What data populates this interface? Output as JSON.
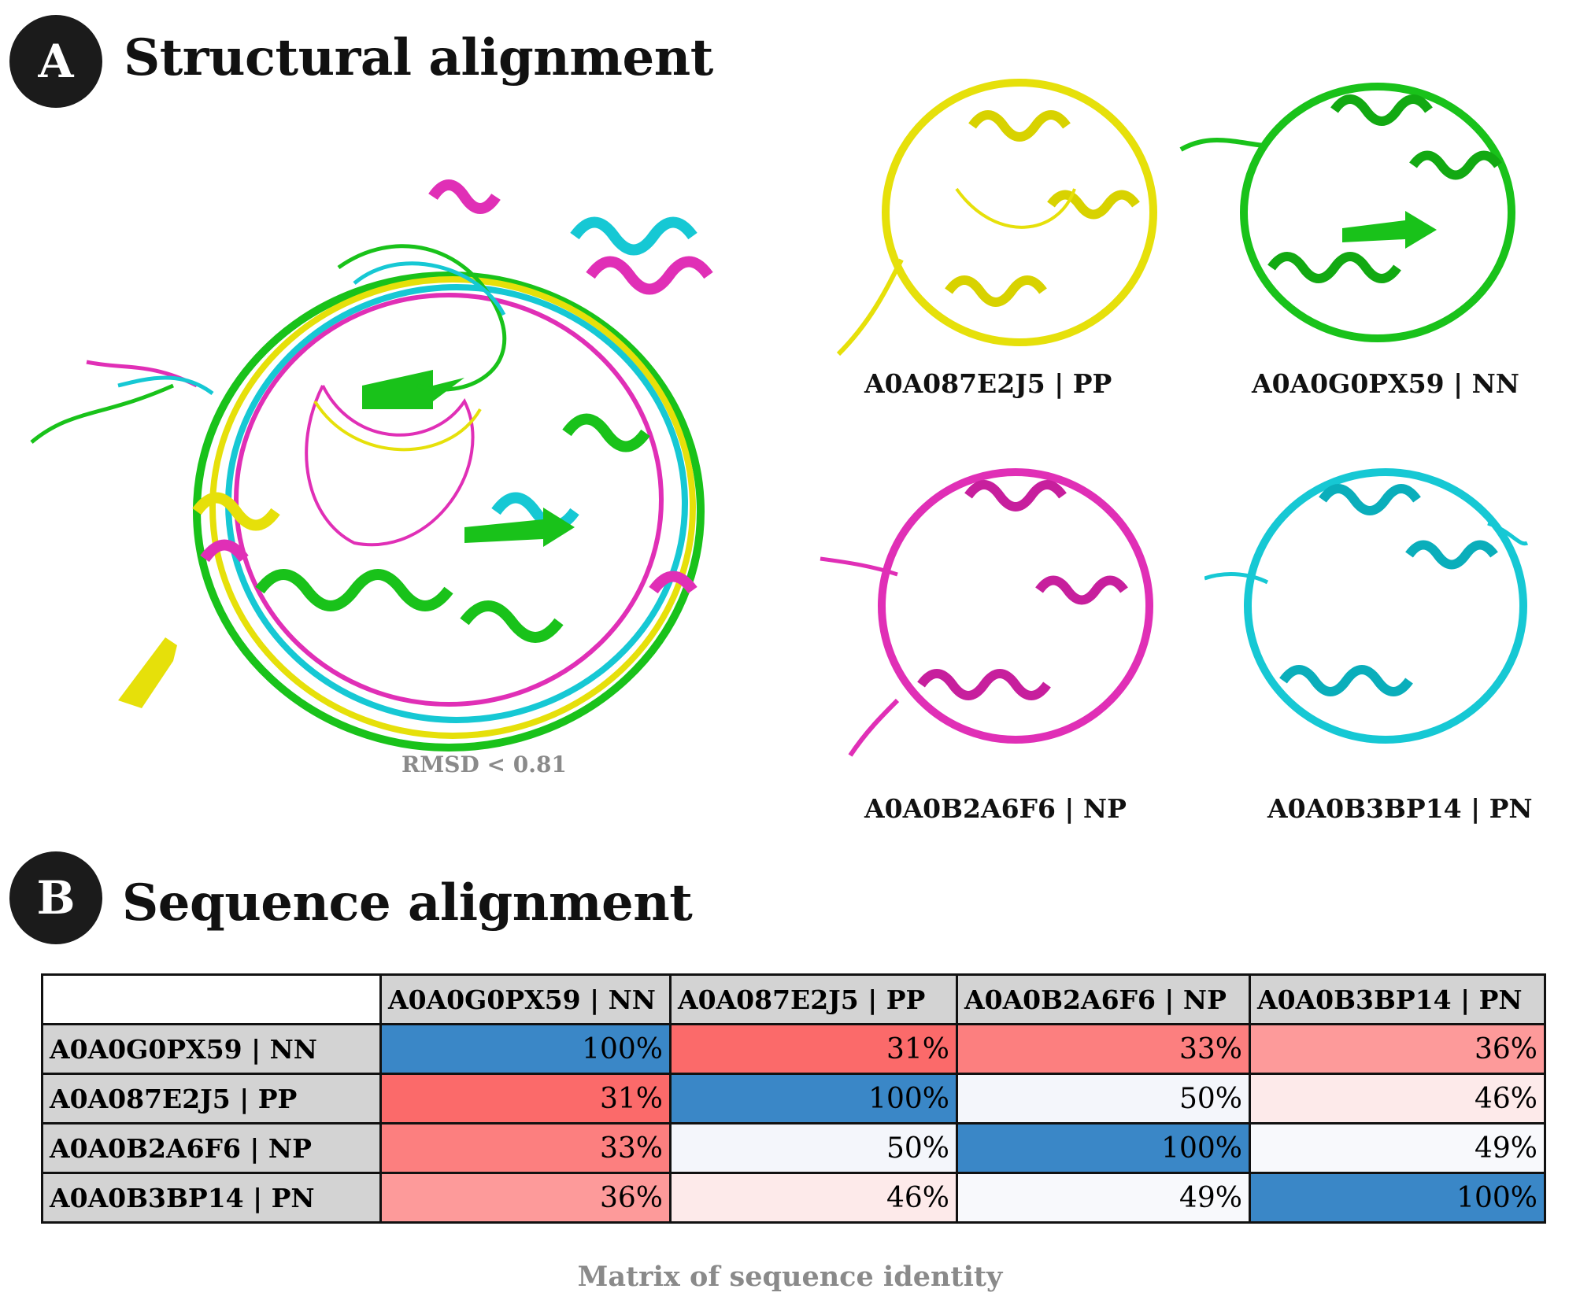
{
  "panel_a": {
    "badge": "A",
    "title": "Structural alignment",
    "rmsd": "RMSD < 0.81",
    "structures": [
      {
        "id": "pp",
        "label": "A0A087E2J5 | PP",
        "color": "#e6e00a"
      },
      {
        "id": "nn",
        "label": "A0A0G0PX59 | NN",
        "color": "#19c21a"
      },
      {
        "id": "np",
        "label": "A0A0B2A6F6 | NP",
        "color": "#e02fb6"
      },
      {
        "id": "pn",
        "label": "A0A0B3BP14 | PN",
        "color": "#16c8d4"
      }
    ]
  },
  "panel_b": {
    "badge": "B",
    "title": "Sequence alignment",
    "caption": "Matrix of sequence identity",
    "columns": [
      "A0A0G0PX59 | NN",
      "A0A087E2J5 | PP",
      "A0A0B2A6F6 | NP",
      "A0A0B3BP14 | PN"
    ],
    "rows": [
      {
        "label": "A0A0G0PX59 | NN",
        "values": [
          "100%",
          "31%",
          "33%",
          "36%"
        ],
        "colors": [
          "#3a87c7",
          "#fb6a6a",
          "#fc7f7f",
          "#fd9a9a"
        ]
      },
      {
        "label": "A0A087E2J5 | PP",
        "values": [
          "31%",
          "100%",
          "50%",
          "46%"
        ],
        "colors": [
          "#fb6a6a",
          "#3a87c7",
          "#f4f6fb",
          "#fdeaea"
        ]
      },
      {
        "label": "A0A0B2A6F6 | NP",
        "values": [
          "33%",
          "50%",
          "100%",
          "49%"
        ],
        "colors": [
          "#fc7f7f",
          "#f4f6fb",
          "#3a87c7",
          "#f8f9fc"
        ]
      },
      {
        "label": "A0A0B3BP14 | PN",
        "values": [
          "36%",
          "46%",
          "49%",
          "100%"
        ],
        "colors": [
          "#fd9a9a",
          "#fdeaea",
          "#f8f9fc",
          "#3a87c7"
        ]
      }
    ]
  }
}
